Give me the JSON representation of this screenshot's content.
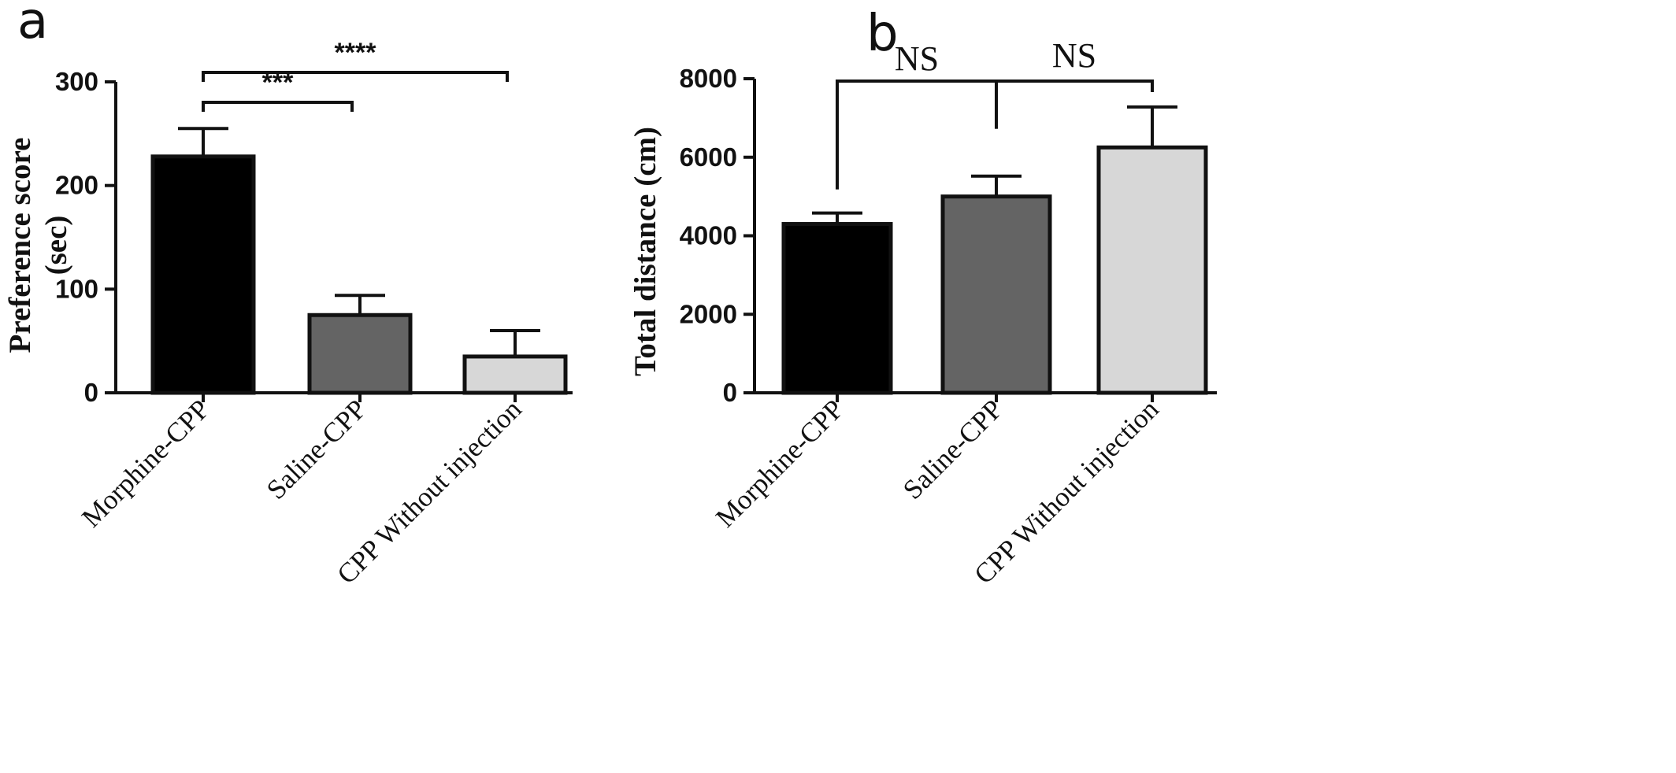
{
  "panels": {
    "a": "a",
    "b": "b"
  },
  "chart_data": [
    {
      "type": "bar",
      "panel": "a",
      "categories": [
        "Morphine-CPP",
        "Saline-CPP",
        "CPP Without injection"
      ],
      "values": [
        228,
        75,
        35
      ],
      "errors": [
        27,
        19,
        25
      ],
      "bar_colors": [
        "#000000",
        "#646464",
        "#d7d7d7"
      ],
      "ylabel_lines": [
        "Preference score",
        "(sec)"
      ],
      "ylim": [
        0,
        300
      ],
      "yticks": [
        0,
        100,
        200,
        300
      ],
      "ytick_labels": [
        "0",
        "100",
        "200",
        "300"
      ],
      "significance": [
        {
          "from": 0,
          "to": 1,
          "label": "***"
        },
        {
          "from": 0,
          "to": 2,
          "label": "****"
        }
      ]
    },
    {
      "type": "bar",
      "panel": "b",
      "categories": [
        "Morphine-CPP",
        "Saline-CPP",
        "CPP Without injection"
      ],
      "values": [
        4300,
        5000,
        6250
      ],
      "errors": [
        280,
        520,
        1030
      ],
      "bar_colors": [
        "#000000",
        "#646464",
        "#d7d7d7"
      ],
      "ylabel": "Total distance (cm)",
      "ylim": [
        0,
        8000
      ],
      "yticks": [
        0,
        2000,
        4000,
        6000,
        8000
      ],
      "ytick_labels": [
        "0",
        "2000",
        "4000",
        "6000",
        "8000"
      ],
      "significance": [
        {
          "from": 0,
          "to": 2,
          "mid": 1,
          "labels": [
            "NS",
            "NS"
          ]
        }
      ]
    }
  ]
}
